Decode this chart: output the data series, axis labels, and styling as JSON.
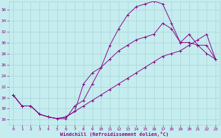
{
  "xlabel": "Windchill (Refroidissement éolien,°C)",
  "bg_color": "#c5ecee",
  "line_color": "#880088",
  "grid_color": "#a8d4d8",
  "xlim_min": -0.5,
  "xlim_max": 23.5,
  "ylim_min": 15.0,
  "ylim_max": 37.5,
  "xticks": [
    0,
    1,
    2,
    3,
    4,
    5,
    6,
    7,
    8,
    9,
    10,
    11,
    12,
    13,
    14,
    15,
    16,
    17,
    18,
    19,
    20,
    21,
    22,
    23
  ],
  "yticks": [
    16,
    18,
    20,
    22,
    24,
    26,
    28,
    30,
    32,
    34,
    36
  ],
  "line1_x": [
    0,
    1,
    2,
    3,
    4,
    5,
    6,
    7,
    8,
    9,
    10,
    11,
    12,
    13,
    14,
    15,
    16,
    17,
    18,
    19,
    20,
    21,
    22,
    23
  ],
  "line1_y": [
    20.5,
    18.5,
    18.5,
    17.0,
    16.5,
    16.2,
    16.2,
    18.5,
    19.5,
    22.5,
    25.5,
    29.5,
    32.5,
    35.0,
    36.5,
    37.0,
    37.5,
    37.0,
    33.5,
    30.0,
    30.0,
    29.5,
    28.0,
    27.0
  ],
  "line2_x": [
    0,
    1,
    2,
    3,
    4,
    5,
    6,
    7,
    8,
    9,
    10,
    11,
    12,
    13,
    14,
    15,
    16,
    17,
    18,
    19,
    20,
    21,
    22,
    23
  ],
  "line2_y": [
    20.5,
    18.5,
    18.5,
    17.0,
    16.5,
    16.2,
    16.5,
    17.5,
    22.5,
    24.5,
    25.5,
    27.0,
    28.5,
    29.5,
    30.5,
    31.0,
    31.5,
    33.5,
    32.5,
    30.0,
    31.5,
    29.5,
    29.5,
    27.0
  ],
  "line3_x": [
    0,
    1,
    2,
    3,
    4,
    5,
    6,
    7,
    8,
    9,
    10,
    11,
    12,
    13,
    14,
    15,
    16,
    17,
    18,
    19,
    20,
    21,
    22,
    23
  ],
  "line3_y": [
    20.5,
    18.5,
    18.5,
    17.0,
    16.5,
    16.2,
    16.5,
    17.5,
    18.5,
    19.5,
    20.5,
    21.5,
    22.5,
    23.5,
    24.5,
    25.5,
    26.5,
    27.5,
    28.0,
    28.5,
    29.5,
    30.5,
    31.5,
    27.0
  ]
}
